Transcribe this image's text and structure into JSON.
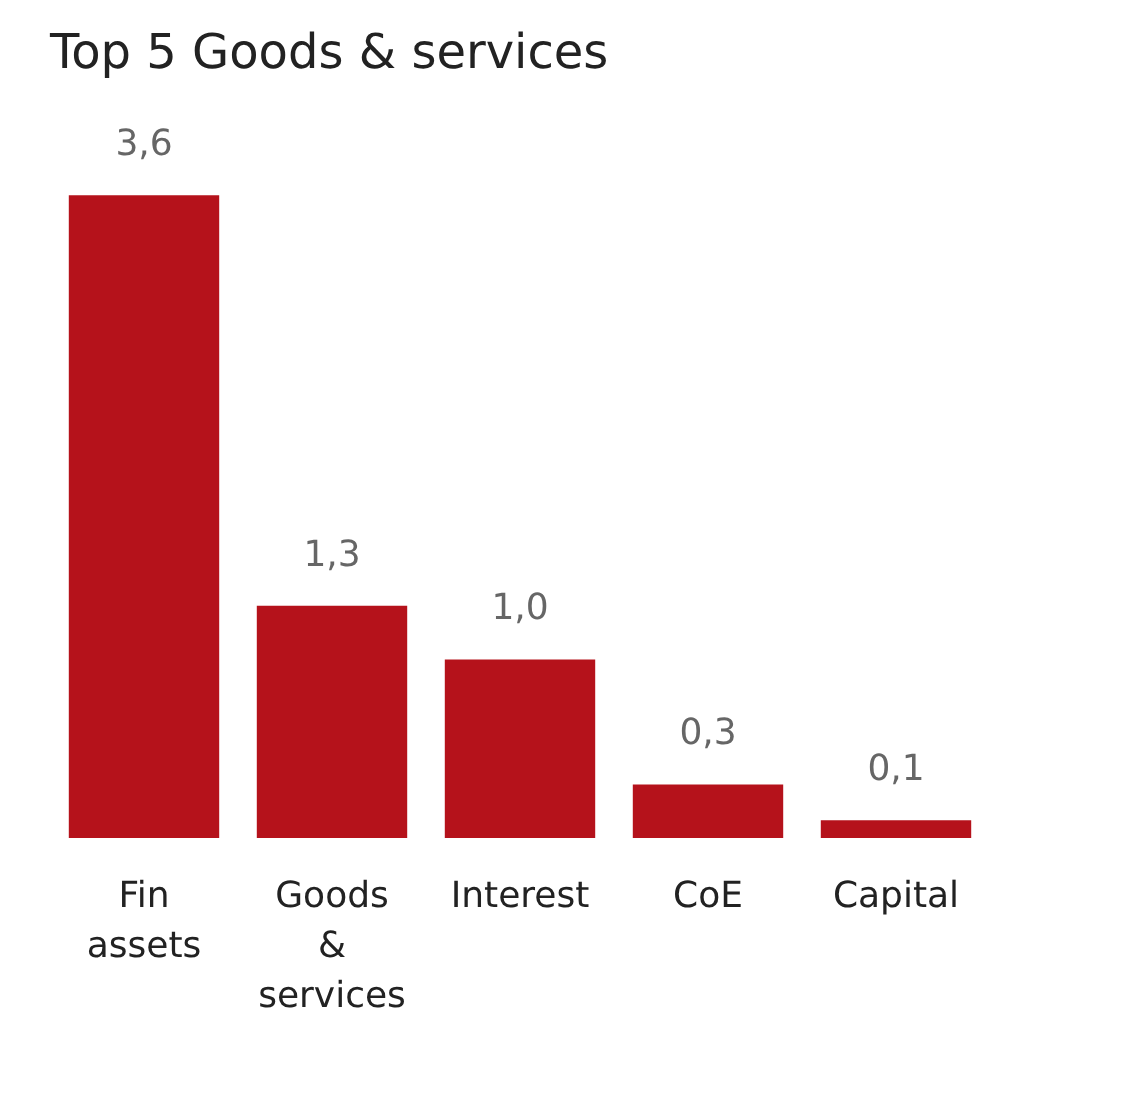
{
  "chart_data": {
    "type": "bar",
    "title": "Top 5 Goods & services",
    "categories": [
      "Fin assets",
      "Goods & services",
      "Interest",
      "CoE",
      "Capital"
    ],
    "values": [
      3.6,
      1.3,
      1.0,
      0.3,
      0.1
    ],
    "value_labels": [
      "3,6",
      "1,3",
      "1,0",
      "0,3",
      "0,1"
    ],
    "color": "#b5121b"
  }
}
